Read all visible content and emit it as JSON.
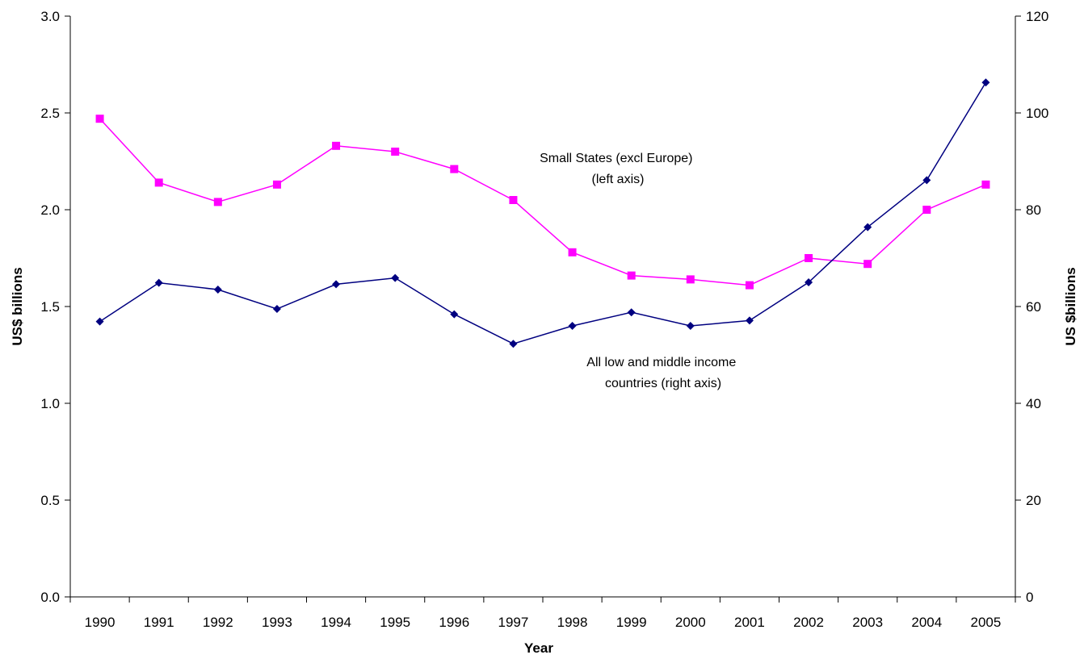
{
  "chart_data": {
    "type": "line",
    "title": "",
    "xlabel": "Year",
    "ylabel_left": "US$ billions",
    "ylabel_right": "US $billions",
    "categories": [
      "1990",
      "1991",
      "1992",
      "1993",
      "1994",
      "1995",
      "1996",
      "1997",
      "1998",
      "1999",
      "2000",
      "2001",
      "2002",
      "2003",
      "2004",
      "2005"
    ],
    "ylim_left": [
      0,
      3.0
    ],
    "yticks_left": [
      "0.0",
      "0.5",
      "1.0",
      "1.5",
      "2.0",
      "2.5",
      "3.0"
    ],
    "ylim_right": [
      0,
      120
    ],
    "yticks_right": [
      "0",
      "20",
      "40",
      "60",
      "80",
      "100",
      "120"
    ],
    "grid": false,
    "legend": "none",
    "series": [
      {
        "axis": "left",
        "color": "#FF00FF",
        "marker": "square",
        "values": [
          2.47,
          2.14,
          2.04,
          2.13,
          2.33,
          2.3,
          2.21,
          2.05,
          1.78,
          1.66,
          1.64,
          1.61,
          1.75,
          1.72,
          2.0,
          2.13
        ]
      },
      {
        "axis": "right",
        "color": "#000080",
        "marker": "diamond",
        "values": [
          56.9,
          64.9,
          63.5,
          59.5,
          64.6,
          65.9,
          58.4,
          52.3,
          56.0,
          58.8,
          56.0,
          57.1,
          65.0,
          76.4,
          86.1,
          106.3
        ]
      }
    ],
    "annotations": [
      {
        "id": "small-states",
        "lines": [
          "Small States (excl Europe)",
          "(left axis)"
        ]
      },
      {
        "id": "low-middle",
        "lines": [
          "All low and middle income",
          "countries (right axis)"
        ]
      }
    ]
  }
}
